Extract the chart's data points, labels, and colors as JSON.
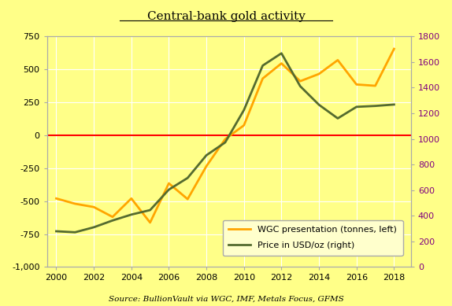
{
  "title": "Central-bank gold activity",
  "source": "Source: BullionVault via WGC, IMF, Metals Focus, GFMS",
  "wgc_years": [
    2000,
    2001,
    2002,
    2003,
    2004,
    2005,
    2006,
    2007,
    2008,
    2009,
    2010,
    2011,
    2012,
    2013,
    2014,
    2015,
    2016,
    2017,
    2018
  ],
  "wgc_values": [
    -480,
    -520,
    -545,
    -620,
    -480,
    -663,
    -365,
    -485,
    -235,
    -30,
    75,
    430,
    545,
    410,
    465,
    570,
    385,
    375,
    655
  ],
  "price_years": [
    2000,
    2001,
    2002,
    2003,
    2004,
    2005,
    2006,
    2007,
    2008,
    2009,
    2010,
    2011,
    2012,
    2013,
    2014,
    2015,
    2016,
    2017,
    2018
  ],
  "price_values": [
    279,
    271,
    310,
    363,
    409,
    444,
    604,
    695,
    872,
    972,
    1225,
    1572,
    1668,
    1411,
    1266,
    1160,
    1250,
    1257,
    1268
  ],
  "wgc_color": "#FFA500",
  "price_color": "#556B2F",
  "zero_line_color": "#FF0000",
  "background_color": "#FFFF88",
  "ylim_left": [
    -1000,
    750
  ],
  "ylim_right": [
    0,
    1800
  ],
  "legend_label_wgc": "WGC presentation (tonnes, left)",
  "legend_label_price": "Price in USD/oz (right)",
  "xticks": [
    2000,
    2002,
    2004,
    2006,
    2008,
    2010,
    2012,
    2014,
    2016,
    2018
  ],
  "yticks_left": [
    -1000,
    -750,
    -500,
    -250,
    0,
    250,
    500,
    750
  ],
  "yticks_right": [
    0,
    200,
    400,
    600,
    800,
    1000,
    1200,
    1400,
    1600,
    1800
  ]
}
